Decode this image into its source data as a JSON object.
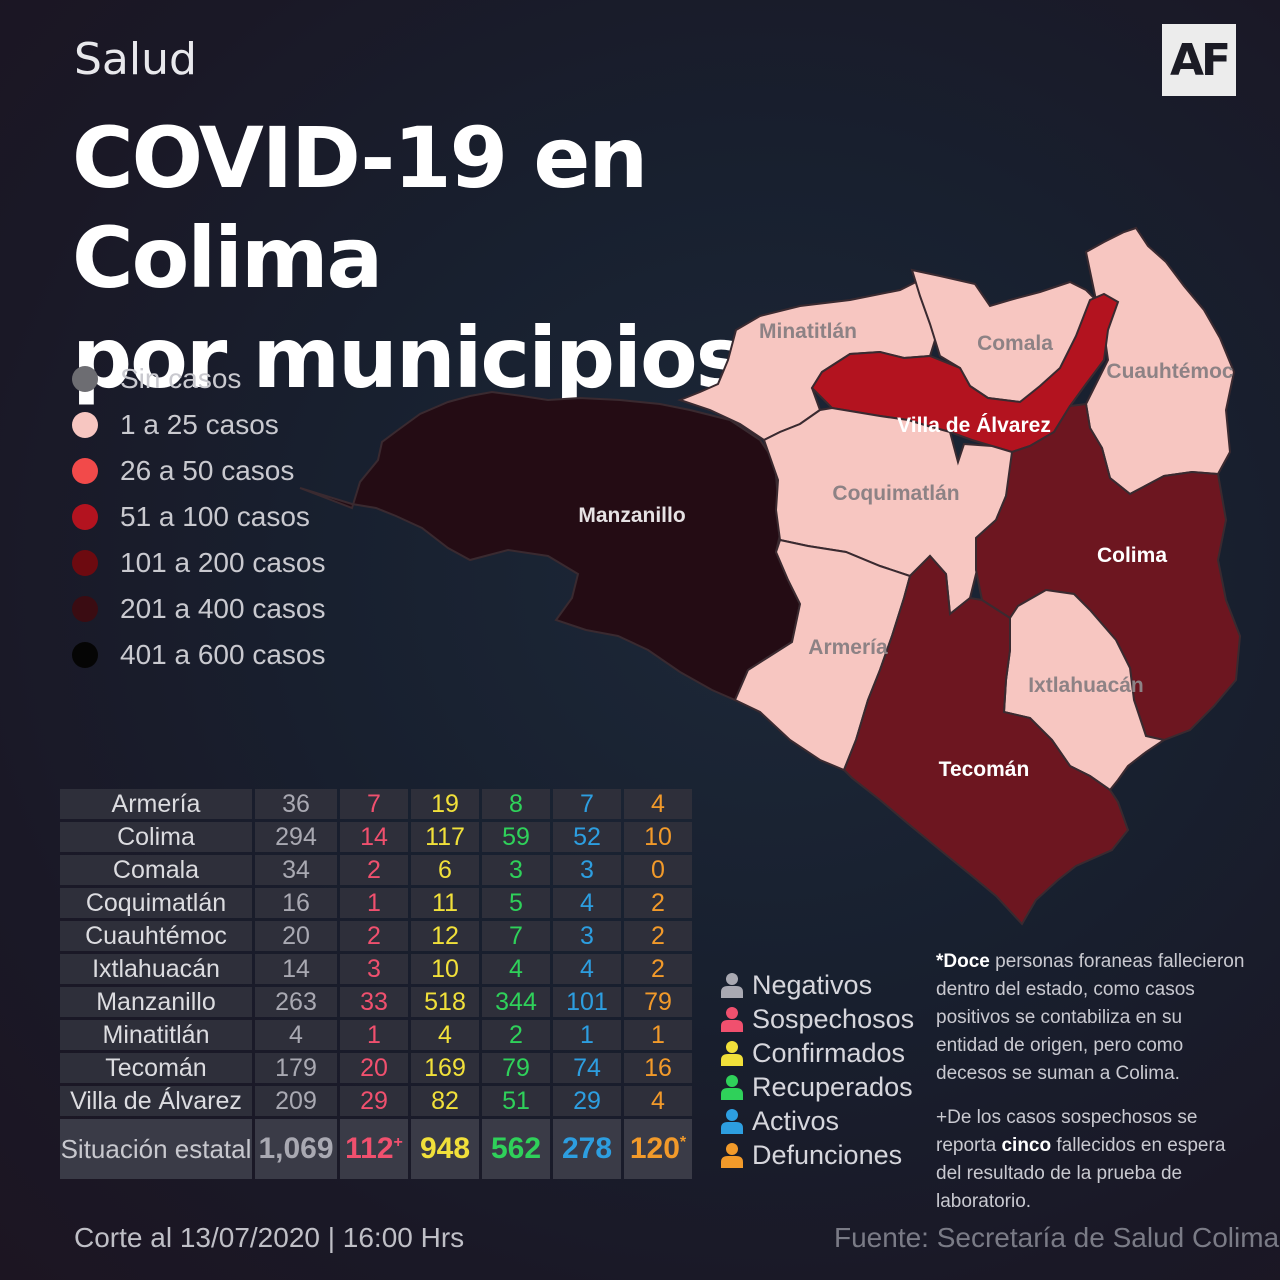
{
  "header": {
    "section": "Salud",
    "title_line1": "COVID-19 en Colima",
    "title_line2": "por municipios",
    "logo": "AF"
  },
  "legend": [
    {
      "label": "Sin casos",
      "color": "#6d6d72"
    },
    {
      "label": "1 a 25 casos",
      "color": "#f7c6c1"
    },
    {
      "label": "26 a  50 casos",
      "color": "#f24a4a"
    },
    {
      "label": "51 a  100 casos",
      "color": "#b3131f"
    },
    {
      "label": "101 a  200 casos",
      "color": "#6d0a10"
    },
    {
      "label": "201  a  400 casos",
      "color": "#3a0c12"
    },
    {
      "label": "401  a  600 casos",
      "color": "#050505"
    }
  ],
  "map": {
    "municipalities": [
      {
        "name": "Minatitlán",
        "color": "#f7c6c1"
      },
      {
        "name": "Comala",
        "color": "#f7c6c1"
      },
      {
        "name": "Cuauhtémoc",
        "color": "#f7c6c1"
      },
      {
        "name": "Villa de Álvarez",
        "color": "#b3131f"
      },
      {
        "name": "Manzanillo",
        "color": "#240c14"
      },
      {
        "name": "Coquimatlán",
        "color": "#f7c6c1"
      },
      {
        "name": "Colima",
        "color": "#6d1620"
      },
      {
        "name": "Armería",
        "color": "#f7c6c1"
      },
      {
        "name": "Ixtlahuacán",
        "color": "#f7c6c1"
      },
      {
        "name": "Tecomán",
        "color": "#6d1620"
      }
    ]
  },
  "table": {
    "rows": [
      {
        "municipio": "Armería",
        "negativos": "36",
        "sospechosos": "7",
        "confirmados": "19",
        "recuperados": "8",
        "activos": "7",
        "defunciones": "4"
      },
      {
        "municipio": "Colima",
        "negativos": "294",
        "sospechosos": "14",
        "confirmados": "117",
        "recuperados": "59",
        "activos": "52",
        "defunciones": "10"
      },
      {
        "municipio": "Comala",
        "negativos": "34",
        "sospechosos": "2",
        "confirmados": "6",
        "recuperados": "3",
        "activos": "3",
        "defunciones": "0"
      },
      {
        "municipio": "Coquimatlán",
        "negativos": "16",
        "sospechosos": "1",
        "confirmados": "11",
        "recuperados": "5",
        "activos": "4",
        "defunciones": "2"
      },
      {
        "municipio": "Cuauhtémoc",
        "negativos": "20",
        "sospechosos": "2",
        "confirmados": "12",
        "recuperados": "7",
        "activos": "3",
        "defunciones": "2"
      },
      {
        "municipio": "Ixtlahuacán",
        "negativos": "14",
        "sospechosos": "3",
        "confirmados": "10",
        "recuperados": "4",
        "activos": "4",
        "defunciones": "2"
      },
      {
        "municipio": "Manzanillo",
        "negativos": "263",
        "sospechosos": "33",
        "confirmados": "518",
        "recuperados": "344",
        "activos": "101",
        "defunciones": "79"
      },
      {
        "municipio": "Minatitlán",
        "negativos": "4",
        "sospechosos": "1",
        "confirmados": "4",
        "recuperados": "2",
        "activos": "1",
        "defunciones": "1"
      },
      {
        "municipio": "Tecomán",
        "negativos": "179",
        "sospechosos": "20",
        "confirmados": "169",
        "recuperados": "79",
        "activos": "74",
        "defunciones": "16"
      },
      {
        "municipio": "Villa de Álvarez",
        "negativos": "209",
        "sospechosos": "29",
        "confirmados": "82",
        "recuperados": "51",
        "activos": "29",
        "defunciones": "4"
      }
    ],
    "total": {
      "label": "Situación estatal",
      "negativos": "1,069",
      "sospechosos": "112",
      "sospechosos_mark": "+",
      "confirmados": "948",
      "recuperados": "562",
      "activos": "278",
      "defunciones": "120",
      "defunciones_mark": "*"
    }
  },
  "key": [
    {
      "label": "Negativos",
      "color": "#a9a9b2",
      "icon": "person-icon"
    },
    {
      "label": "Sospechosos",
      "color": "#f0506e",
      "icon": "person-icon"
    },
    {
      "label": "Confirmados",
      "color": "#f1e03a",
      "icon": "person-icon"
    },
    {
      "label": "Recuperados",
      "color": "#2fd15a",
      "icon": "person-icon"
    },
    {
      "label": "Activos",
      "color": "#2d9ee0",
      "icon": "person-icon"
    },
    {
      "label": "Defunciones",
      "color": "#f29a2a",
      "icon": "person-icon"
    }
  ],
  "notes": {
    "note1_prefix": "*",
    "note1_bold": "Doce",
    "note1_text": "  personas foraneas fallecieron dentro del estado, como casos positivos se contabiliza en su entidad de origen, pero como decesos se suman a Colima.",
    "note2_text_a": "+De los casos sospechosos se reporta ",
    "note2_bold": "cinco",
    "note2_text_b": " fallecidos en espera del resultado de la prueba de laboratorio."
  },
  "footer": {
    "cutoff": "Corte al 13/07/2020 | 16:00 Hrs",
    "source": "Fuente: Secretaría de Salud Colima"
  }
}
